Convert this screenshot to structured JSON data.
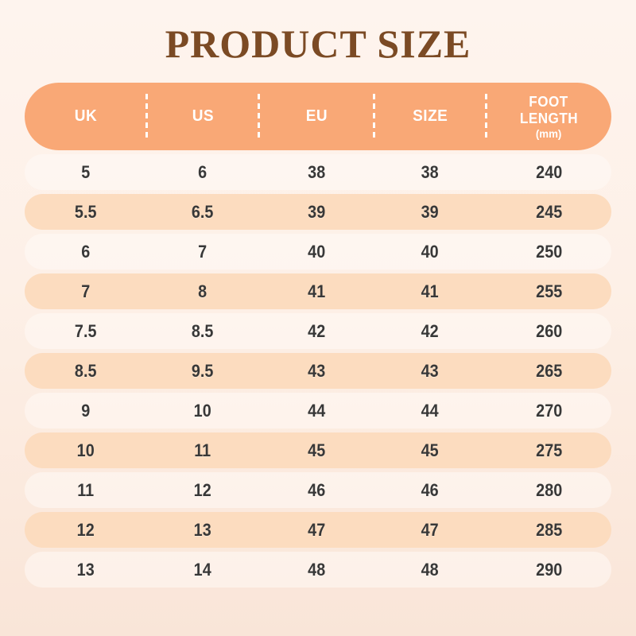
{
  "title": "PRODUCT SIZE",
  "table": {
    "headers": [
      {
        "label": "UK"
      },
      {
        "label": "US"
      },
      {
        "label": "EU"
      },
      {
        "label": "SIZE"
      },
      {
        "line1": "FOOT",
        "line2": "LENGTH",
        "unit": "(mm)"
      }
    ],
    "rows": [
      {
        "uk": "5",
        "us": "6",
        "eu": "38",
        "size": "38",
        "foot_mm": "240"
      },
      {
        "uk": "5.5",
        "us": "6.5",
        "eu": "39",
        "size": "39",
        "foot_mm": "245"
      },
      {
        "uk": "6",
        "us": "7",
        "eu": "40",
        "size": "40",
        "foot_mm": "250"
      },
      {
        "uk": "7",
        "us": "8",
        "eu": "41",
        "size": "41",
        "foot_mm": "255"
      },
      {
        "uk": "7.5",
        "us": "8.5",
        "eu": "42",
        "size": "42",
        "foot_mm": "260"
      },
      {
        "uk": "8.5",
        "us": "9.5",
        "eu": "43",
        "size": "43",
        "foot_mm": "265"
      },
      {
        "uk": "9",
        "us": "10",
        "eu": "44",
        "size": "44",
        "foot_mm": "270"
      },
      {
        "uk": "10",
        "us": "11",
        "eu": "45",
        "size": "45",
        "foot_mm": "275"
      },
      {
        "uk": "11",
        "us": "12",
        "eu": "46",
        "size": "46",
        "foot_mm": "280"
      },
      {
        "uk": "12",
        "us": "13",
        "eu": "47",
        "size": "47",
        "foot_mm": "285"
      },
      {
        "uk": "13",
        "us": "14",
        "eu": "48",
        "size": "48",
        "foot_mm": "290"
      }
    ]
  },
  "colors": {
    "background_top": "#fef4ee",
    "background_bottom": "#f9e5d8",
    "header_fill": "#f9a876",
    "header_text": "#ffffff",
    "row_peach": "#fcdcbf",
    "row_light": "#fffaf5",
    "cell_text": "#383838",
    "title_text": "#7b4a24"
  }
}
